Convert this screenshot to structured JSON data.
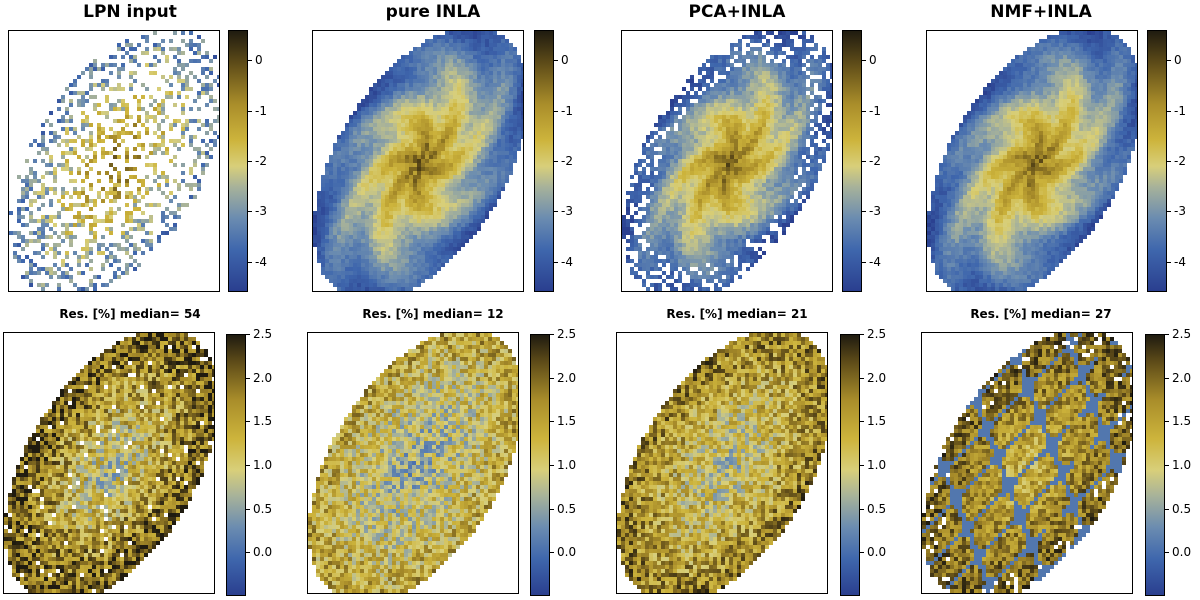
{
  "chart_data": [
    {
      "type": "heatmap",
      "title": "LPN input",
      "subtitle": "",
      "colorbar": {
        "min": -4.6,
        "max": 0.6,
        "ticks": [
          "0",
          "-1",
          "-2",
          "-3",
          "-4"
        ],
        "tick_values": [
          0,
          -1,
          -2,
          -3,
          -4
        ]
      },
      "style": "sparse"
    },
    {
      "type": "heatmap",
      "title": "pure INLA",
      "subtitle": "",
      "colorbar": {
        "min": -4.6,
        "max": 0.6,
        "ticks": [
          "0",
          "-1",
          "-2",
          "-3",
          "-4"
        ],
        "tick_values": [
          0,
          -1,
          -2,
          -3,
          -4
        ]
      },
      "style": "smooth"
    },
    {
      "type": "heatmap",
      "title": "PCA+INLA",
      "subtitle": "",
      "colorbar": {
        "min": -4.6,
        "max": 0.6,
        "ticks": [
          "0",
          "-1",
          "-2",
          "-3",
          "-4"
        ],
        "tick_values": [
          0,
          -1,
          -2,
          -3,
          -4
        ]
      },
      "style": "smooth-edge"
    },
    {
      "type": "heatmap",
      "title": "NMF+INLA",
      "subtitle": "",
      "colorbar": {
        "min": -4.6,
        "max": 0.6,
        "ticks": [
          "0",
          "-1",
          "-2",
          "-3",
          "-4"
        ],
        "tick_values": [
          0,
          -1,
          -2,
          -3,
          -4
        ]
      },
      "style": "smooth"
    },
    {
      "type": "heatmap",
      "title": "",
      "subtitle": "Res. [%] median= 54",
      "colorbar": {
        "min": -0.5,
        "max": 2.5,
        "ticks": [
          "2.5",
          "2.0",
          "1.5",
          "1.0",
          "0.5",
          "0.0"
        ],
        "tick_values": [
          2.5,
          2.0,
          1.5,
          1.0,
          0.5,
          0.0
        ]
      },
      "style": "residual-high"
    },
    {
      "type": "heatmap",
      "title": "",
      "subtitle": "Res. [%]  median= 12",
      "colorbar": {
        "min": -0.5,
        "max": 2.5,
        "ticks": [
          "2.5",
          "2.0",
          "1.5",
          "1.0",
          "0.5",
          "0.0"
        ],
        "tick_values": [
          2.5,
          2.0,
          1.5,
          1.0,
          0.5,
          0.0
        ]
      },
      "style": "residual-low"
    },
    {
      "type": "heatmap",
      "title": "",
      "subtitle": "Res. [%]  median= 21",
      "colorbar": {
        "min": -0.5,
        "max": 2.5,
        "ticks": [
          "2.5",
          "2.0",
          "1.5",
          "1.0",
          "0.5",
          "0.0"
        ],
        "tick_values": [
          2.5,
          2.0,
          1.5,
          1.0,
          0.5,
          0.0
        ]
      },
      "style": "residual-mid"
    },
    {
      "type": "heatmap",
      "title": "",
      "subtitle": "Res. [%]  median= 27",
      "colorbar": {
        "min": -0.5,
        "max": 2.5,
        "ticks": [
          "2.5",
          "2.0",
          "1.5",
          "1.0",
          "0.5",
          "0.0"
        ],
        "tick_values": [
          2.5,
          2.0,
          1.5,
          1.0,
          0.5,
          0.0
        ]
      },
      "style": "residual-filament"
    }
  ]
}
